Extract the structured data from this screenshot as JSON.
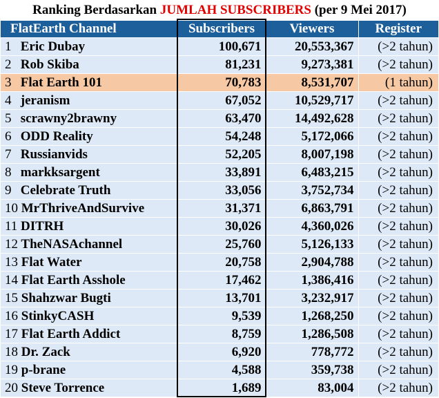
{
  "title": {
    "prefix": "Ranking Berdasarkan",
    "highlight": "JUMLAH SUBSCRIBERS",
    "suffix_open": "(per ",
    "suffix_date": "9 Mei 2017",
    "suffix_close": ")"
  },
  "colors": {
    "header": "#1d5f9b",
    "row": "#dde9f6",
    "highlight_row": "#f6c9a4",
    "title_highlight": "#e00000"
  },
  "headers": [
    "FlatEarth Channel",
    "Subscribers",
    "Viewers",
    "Register"
  ],
  "rows": [
    {
      "rank": "1",
      "name": "Eric Dubay",
      "subscribers": "100,671",
      "viewers": "20,553,367",
      "register": "(>2 tahun)"
    },
    {
      "rank": "2",
      "name": "Rob Skiba",
      "subscribers": "81,231",
      "viewers": "9,273,381",
      "register": "(>2 tahun)"
    },
    {
      "rank": "3",
      "name": "Flat Earth 101",
      "subscribers": "70,783",
      "viewers": "8,531,707",
      "register": "(1 tahun)"
    },
    {
      "rank": "4",
      "name": "jeranism",
      "subscribers": "67,052",
      "viewers": "10,529,717",
      "register": "(>2 tahun)"
    },
    {
      "rank": "5",
      "name": "scrawny2brawny",
      "subscribers": "63,470",
      "viewers": "14,492,628",
      "register": "(>2 tahun)"
    },
    {
      "rank": "6",
      "name": "ODD Reality",
      "subscribers": "54,248",
      "viewers": "5,172,066",
      "register": "(>2 tahun)"
    },
    {
      "rank": "7",
      "name": "Russianvids",
      "subscribers": "52,205",
      "viewers": "8,007,198",
      "register": "(>2 tahun)"
    },
    {
      "rank": "8",
      "name": "markksargent",
      "subscribers": "33,891",
      "viewers": "6,483,215",
      "register": "(>2 tahun)"
    },
    {
      "rank": "9",
      "name": "Celebrate Truth",
      "subscribers": "33,056",
      "viewers": "3,752,734",
      "register": "(>2 tahun)"
    },
    {
      "rank": "10",
      "name": "MrThriveAndSurvive",
      "subscribers": "31,371",
      "viewers": "6,863,791",
      "register": "(>2 tahun)"
    },
    {
      "rank": "11",
      "name": "DITRH",
      "subscribers": "30,026",
      "viewers": "4,360,026",
      "register": "(>2 tahun)"
    },
    {
      "rank": "12",
      "name": "TheNASAchannel",
      "subscribers": "25,760",
      "viewers": "5,126,133",
      "register": "(>2 tahun)"
    },
    {
      "rank": "13",
      "name": "Flat Water",
      "subscribers": "20,758",
      "viewers": "2,904,788",
      "register": "(>2 tahun)"
    },
    {
      "rank": "14",
      "name": "Flat Earth Asshole",
      "subscribers": "17,462",
      "viewers": "1,386,416",
      "register": "(>2 tahun)"
    },
    {
      "rank": "15",
      "name": "Shahzwar Bugti",
      "subscribers": "13,701",
      "viewers": "3,232,917",
      "register": "(>2 tahun)"
    },
    {
      "rank": "16",
      "name": "StinkyCASH",
      "subscribers": "9,539",
      "viewers": "1,268,250",
      "register": "(>2 tahun)"
    },
    {
      "rank": "17",
      "name": "Flat Earth Addict",
      "subscribers": "8,759",
      "viewers": "1,286,508",
      "register": "(>2 tahun)"
    },
    {
      "rank": "18",
      "name": "Dr. Zack",
      "subscribers": "6,920",
      "viewers": "778,772",
      "register": "(>2 tahun)"
    },
    {
      "rank": "19",
      "name": "p-brane",
      "subscribers": "4,588",
      "viewers": "359,738",
      "register": "(>2 tahun)"
    },
    {
      "rank": "20",
      "name": "Steve Torrence",
      "subscribers": "1,689",
      "viewers": "83,004",
      "register": "(>2 tahun)"
    }
  ],
  "highlighted_rank": "3"
}
